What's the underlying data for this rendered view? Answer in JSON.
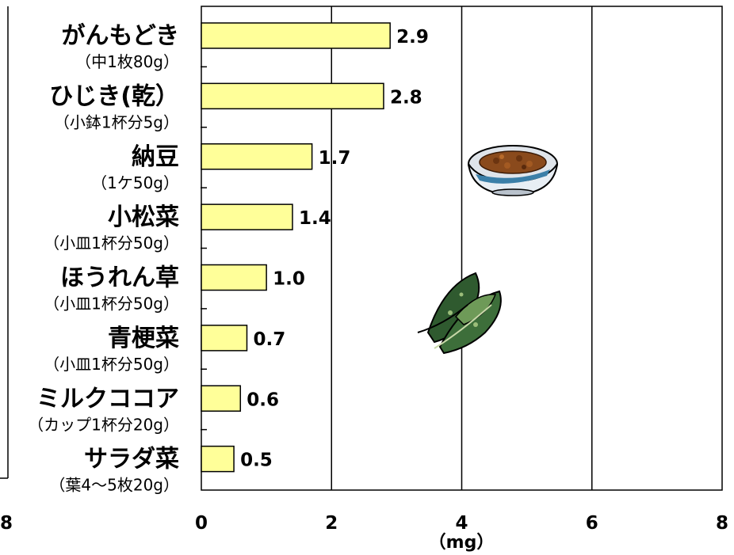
{
  "chart_data": {
    "type": "bar",
    "orientation": "horizontal",
    "categories": [
      {
        "name": "がんもどき",
        "note": "（中1枚80g）"
      },
      {
        "name": "ひじき(乾）",
        "note": "（小鉢1杯分5g）"
      },
      {
        "name": "納豆",
        "note": "（1ケ50g）"
      },
      {
        "name": "小松菜",
        "note": "（小皿1杯分50g）"
      },
      {
        "name": "ほうれん草",
        "note": "（小皿1杯分50g）"
      },
      {
        "name": "青梗菜",
        "note": "（小皿1杯分50g）"
      },
      {
        "name": "ミルクココア",
        "note": "（カップ1杯分20g）"
      },
      {
        "name": "サラダ菜",
        "note": "（葉4～5枚20g）"
      }
    ],
    "values": [
      2.9,
      2.8,
      1.7,
      1.4,
      1.0,
      0.7,
      0.6,
      0.5
    ],
    "value_labels": [
      "2.9",
      "2.8",
      "1.7",
      "1.4",
      "1.0",
      "0.7",
      "0.6",
      "0.5"
    ],
    "xlim": [
      0,
      8
    ],
    "x_ticks": [
      "0",
      "2",
      "4",
      "6",
      "8"
    ],
    "xlabel": "（mg）",
    "grid": "vertical",
    "bar_color": "#ffff99",
    "bar_edge_color": "#000000",
    "partial_left_tick": "8",
    "decorations": [
      "natto-bowl-icon",
      "spinach-icon"
    ]
  }
}
